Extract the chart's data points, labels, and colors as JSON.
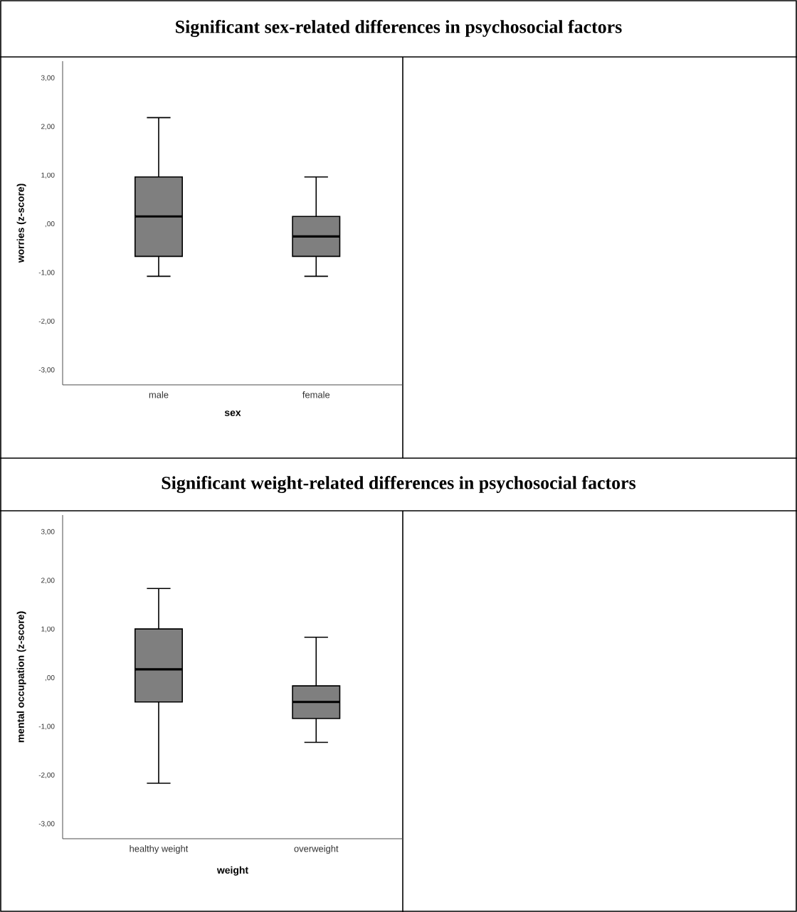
{
  "chart_data": [
    {
      "type": "box",
      "title": "Significant sex-related differences in psychosocial factors",
      "xlabel": "sex",
      "ylabel": "worries (z-score)",
      "categories": [
        "male",
        "female"
      ],
      "color": "#7f7f7f",
      "boxes": [
        {
          "low": -1.07,
          "q1": -0.66,
          "median": 0.16,
          "q3": 0.97,
          "high": 2.19
        },
        {
          "low": -1.07,
          "q1": -0.66,
          "median": -0.25,
          "q3": 0.16,
          "high": 0.97
        }
      ],
      "ylim": [
        -3.3,
        3.35
      ],
      "yticks": [
        {
          "value": -3,
          "label": "-3,00"
        },
        {
          "value": -2,
          "label": "-2,00"
        },
        {
          "value": -1,
          "label": "-1,00"
        },
        {
          "value": 0,
          "label": ",00"
        },
        {
          "value": 1,
          "label": "1,00"
        },
        {
          "value": 2,
          "label": "2,00"
        },
        {
          "value": 3,
          "label": "3,00"
        }
      ]
    },
    {
      "type": "box",
      "title": "Significant weight-related differences in psychosocial factors",
      "xlabel": "weight",
      "ylabel": "mental occupation (z-score)",
      "categories": [
        "healthy weight",
        "overweight"
      ],
      "color": "#7f7f7f",
      "boxes": [
        {
          "low": -2.16,
          "q1": -0.49,
          "median": 0.18,
          "q3": 1.01,
          "high": 1.84
        },
        {
          "low": -1.32,
          "q1": -0.83,
          "median": -0.49,
          "q3": -0.16,
          "high": 0.84
        }
      ],
      "ylim": [
        -3.3,
        3.35
      ],
      "yticks": [
        {
          "value": -3,
          "label": "-3,00"
        },
        {
          "value": -2,
          "label": "-2,00"
        },
        {
          "value": -1,
          "label": "-1,00"
        },
        {
          "value": 0,
          "label": ",00"
        },
        {
          "value": 1,
          "label": "1,00"
        },
        {
          "value": 2,
          "label": "2,00"
        },
        {
          "value": 3,
          "label": "3,00"
        }
      ]
    }
  ]
}
